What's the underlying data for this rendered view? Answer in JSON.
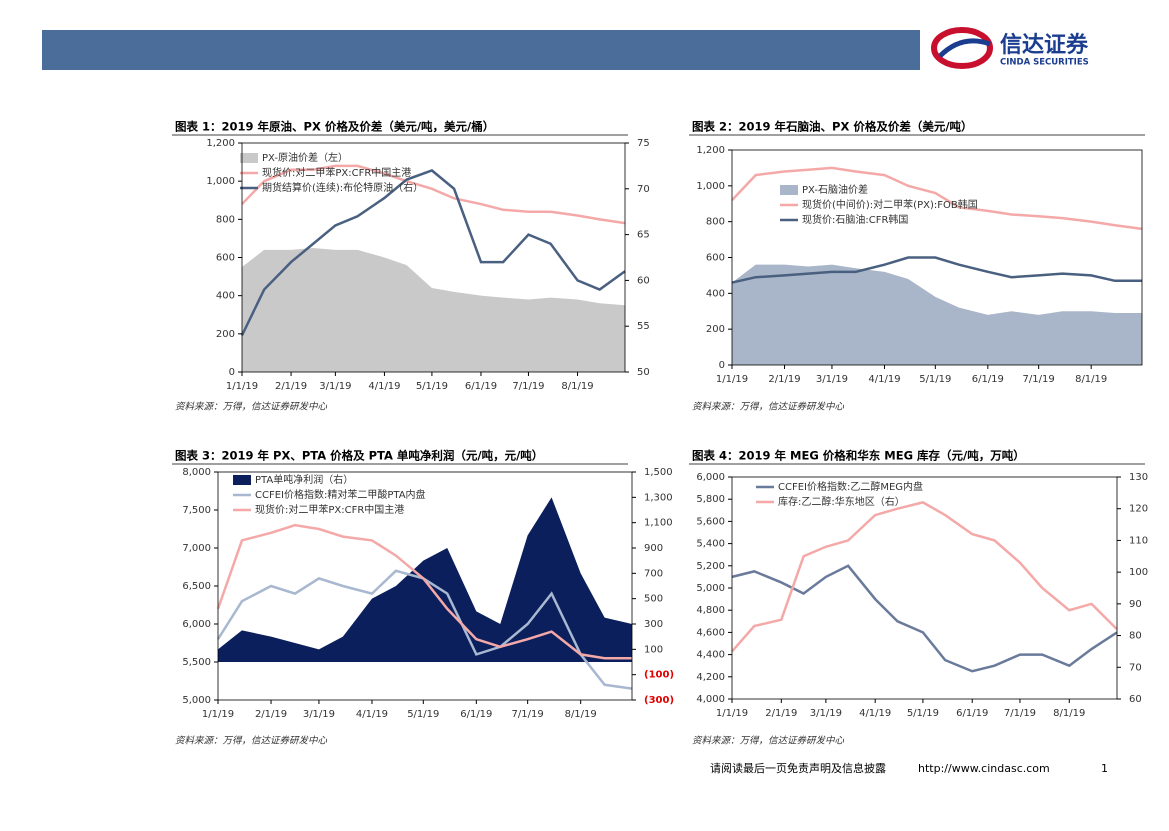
{
  "header": {
    "logo_cn": "信达证券",
    "logo_en": "CINDA SECURITIES"
  },
  "footer": {
    "disclaimer": "请阅读最后一页免责声明及信息披露",
    "url": "http://www.cindasc.com",
    "page": "1"
  },
  "chart_data": [
    {
      "type": "line",
      "title": "图表 1：2019 年原油、PX 价格及价差（美元/吨，美元/桶）",
      "source": "资料来源：万得，信达证券研发中心",
      "x": [
        "1/1/19",
        "1/15/19",
        "2/1/19",
        "2/15/19",
        "3/1/19",
        "3/15/19",
        "4/1/19",
        "4/15/19",
        "5/1/19",
        "5/15/19",
        "6/1/19",
        "6/15/19",
        "7/1/19",
        "7/15/19",
        "8/1/19",
        "8/15/19",
        "8/31/19"
      ],
      "xlim": [
        "1/1/19",
        "8/31/19"
      ],
      "xticks": [
        "1/1/19",
        "2/1/19",
        "3/1/19",
        "4/1/19",
        "5/1/19",
        "6/1/19",
        "7/1/19",
        "8/1/19"
      ],
      "ylim": [
        0,
        1200
      ],
      "yticks": [
        0,
        200,
        400,
        600,
        800,
        {
          "value": 1000,
          "label": "1,000"
        },
        {
          "value": 1200,
          "label": "1,200"
        }
      ],
      "y2lim": [
        50,
        75
      ],
      "y2ticks": [
        50,
        55,
        60,
        65,
        70,
        75
      ],
      "series": [
        {
          "name": "PX-原油价差（左）",
          "type": "area",
          "color": "#c9c9c9",
          "values": [
            550,
            640,
            640,
            650,
            640,
            640,
            600,
            560,
            440,
            420,
            400,
            390,
            380,
            390,
            380,
            360,
            350
          ]
        },
        {
          "name": "现货价:对二甲苯PX:CFR中国主港",
          "type": "line",
          "color": "#f4a9a8",
          "values": [
            880,
            1000,
            1060,
            1060,
            1080,
            1080,
            1040,
            1000,
            960,
            910,
            880,
            850,
            840,
            840,
            820,
            800,
            780
          ]
        },
        {
          "name": "期货结算价(连续):布伦特原油（右）",
          "type": "line",
          "color": "#4a6080",
          "axis": "y2",
          "values": [
            54,
            59,
            62,
            64,
            66,
            67,
            69,
            71,
            72,
            70,
            62,
            62,
            65,
            64,
            60,
            59,
            61
          ]
        }
      ]
    },
    {
      "type": "line",
      "title": "图表 2：2019 年石脑油、PX 价格及价差（美元/吨）",
      "source": "资料来源：万得，信达证券研发中心",
      "x": [
        "1/1/19",
        "1/15/19",
        "2/1/19",
        "2/15/19",
        "3/1/19",
        "3/15/19",
        "4/1/19",
        "4/15/19",
        "5/1/19",
        "5/15/19",
        "6/1/19",
        "6/15/19",
        "7/1/19",
        "7/15/19",
        "8/1/19",
        "8/15/19",
        "8/31/19"
      ],
      "xlim": [
        "1/1/19",
        "8/31/19"
      ],
      "xticks": [
        "1/1/19",
        "2/1/19",
        "3/1/19",
        "4/1/19",
        "5/1/19",
        "6/1/19",
        "7/1/19",
        "8/1/19"
      ],
      "ylim": [
        0,
        1200
      ],
      "yticks": [
        0,
        200,
        400,
        600,
        800,
        {
          "value": 1000,
          "label": "1,000"
        },
        {
          "value": 1200,
          "label": "1,200"
        }
      ],
      "series": [
        {
          "name": "PX-石脑油价差",
          "type": "area",
          "color": "#a9b5c8",
          "values": [
            460,
            560,
            560,
            550,
            560,
            540,
            520,
            480,
            380,
            320,
            280,
            300,
            280,
            300,
            300,
            290,
            290
          ]
        },
        {
          "name": "现货价(中间价):对二甲苯(PX):FOB韩国",
          "type": "line",
          "color": "#f4a9a8",
          "values": [
            920,
            1060,
            1080,
            1090,
            1100,
            1080,
            1060,
            1000,
            960,
            880,
            860,
            840,
            830,
            820,
            800,
            780,
            760
          ]
        },
        {
          "name": "现货价:石脑油:CFR韩国",
          "type": "line",
          "color": "#4a6080",
          "values": [
            460,
            490,
            500,
            510,
            520,
            520,
            560,
            600,
            600,
            560,
            520,
            490,
            500,
            510,
            500,
            470,
            470
          ]
        }
      ]
    },
    {
      "type": "line",
      "title": "图表 3：2019 年 PX、PTA 价格及 PTA 单吨净利润（元/吨，元/吨）",
      "source": "资料来源：万得，信达证券研发中心",
      "x": [
        "1/1/19",
        "1/15/19",
        "2/1/19",
        "2/15/19",
        "3/1/19",
        "3/15/19",
        "4/1/19",
        "4/15/19",
        "5/1/19",
        "5/15/19",
        "6/1/19",
        "6/15/19",
        "7/1/19",
        "7/15/19",
        "8/1/19",
        "8/15/19",
        "8/31/19"
      ],
      "xlim": [
        "1/1/19",
        "8/31/19"
      ],
      "xticks": [
        "1/1/19",
        "2/1/19",
        "3/1/19",
        "4/1/19",
        "5/1/19",
        "6/1/19",
        "7/1/19",
        "8/1/19"
      ],
      "ylim": [
        5000,
        8000
      ],
      "yticks": [
        {
          "value": 5000,
          "label": "5,000"
        },
        {
          "value": 5500,
          "label": "5,500"
        },
        {
          "value": 6000,
          "label": "6,000"
        },
        {
          "value": 6500,
          "label": "6,500"
        },
        {
          "value": 7000,
          "label": "7,000"
        },
        {
          "value": 7500,
          "label": "7,500"
        },
        {
          "value": 8000,
          "label": "8,000"
        }
      ],
      "y2lim": [
        -300,
        1500
      ],
      "y2ticks": [
        {
          "value": -300,
          "label": "(300)"
        },
        {
          "value": -100,
          "label": "(100)"
        },
        100,
        300,
        500,
        700,
        900,
        {
          "value": 1100,
          "label": "1,100"
        },
        {
          "value": 1300,
          "label": "1,300"
        },
        {
          "value": 1500,
          "label": "1,500"
        }
      ],
      "negative_tick_color": "#e00000",
      "series": [
        {
          "name": "PTA单吨净利润（右）",
          "type": "area",
          "color": "#0a1f5c",
          "axis": "y2",
          "values": [
            100,
            250,
            200,
            150,
            100,
            200,
            500,
            600,
            800,
            900,
            400,
            300,
            1000,
            1300,
            700,
            350,
            300
          ]
        },
        {
          "name": "CCFEI价格指数:精对苯二甲酸PTA内盘",
          "type": "line",
          "color": "#a8b8d0",
          "values": [
            5800,
            6300,
            6500,
            6400,
            6600,
            6500,
            6400,
            6700,
            6600,
            6400,
            5600,
            5700,
            6000,
            6400,
            5600,
            5200,
            5150
          ]
        },
        {
          "name": "现货价:对二甲苯PX:CFR中国主港",
          "type": "line",
          "color": "#f4a9a8",
          "values": [
            6200,
            7100,
            7200,
            7300,
            7250,
            7150,
            7100,
            6900,
            6600,
            6200,
            5800,
            5700,
            5800,
            5900,
            5600,
            5550,
            5550
          ]
        }
      ]
    },
    {
      "type": "line",
      "title": "图表 4：2019 年 MEG 价格和华东 MEG 库存（元/吨，万吨）",
      "source": "资料来源：万得，信达证券研发中心",
      "x": [
        "1/1/19",
        "1/15/19",
        "2/1/19",
        "2/15/19",
        "3/1/19",
        "3/15/19",
        "4/1/19",
        "4/15/19",
        "5/1/19",
        "5/15/19",
        "6/1/19",
        "6/15/19",
        "7/1/19",
        "7/15/19",
        "8/1/19",
        "8/15/19",
        "8/31/19"
      ],
      "xlim": [
        "1/1/19",
        "8/31/19"
      ],
      "xticks": [
        "1/1/19",
        "2/1/19",
        "3/1/19",
        "4/1/19",
        "5/1/19",
        "6/1/19",
        "7/1/19",
        "8/1/19"
      ],
      "ylim": [
        4000,
        6000
      ],
      "yticks": [
        {
          "value": 4000,
          "label": "4,000"
        },
        {
          "value": 4200,
          "label": "4,200"
        },
        {
          "value": 4400,
          "label": "4,400"
        },
        {
          "value": 4600,
          "label": "4,600"
        },
        {
          "value": 4800,
          "label": "4,800"
        },
        {
          "value": 5000,
          "label": "5,000"
        },
        {
          "value": 5200,
          "label": "5,200"
        },
        {
          "value": 5400,
          "label": "5,400"
        },
        {
          "value": 5600,
          "label": "5,600"
        },
        {
          "value": 5800,
          "label": "5,800"
        },
        {
          "value": 6000,
          "label": "6,000"
        }
      ],
      "y2lim": [
        60,
        130
      ],
      "y2ticks": [
        60,
        70,
        80,
        90,
        100,
        110,
        120,
        130
      ],
      "series": [
        {
          "name": "CCFEI价格指数:乙二醇MEG内盘",
          "type": "line",
          "color": "#6a7a9a",
          "values": [
            5100,
            5150,
            5050,
            4950,
            5100,
            5200,
            4900,
            4700,
            4600,
            4350,
            4250,
            4300,
            4400,
            4400,
            4300,
            4450,
            4600
          ]
        },
        {
          "name": "库存:乙二醇:华东地区（右）",
          "type": "line",
          "color": "#f4a9a8",
          "axis": "y2",
          "values": [
            75,
            83,
            85,
            105,
            108,
            110,
            118,
            120,
            122,
            118,
            112,
            110,
            103,
            95,
            88,
            90,
            82
          ]
        }
      ]
    }
  ]
}
